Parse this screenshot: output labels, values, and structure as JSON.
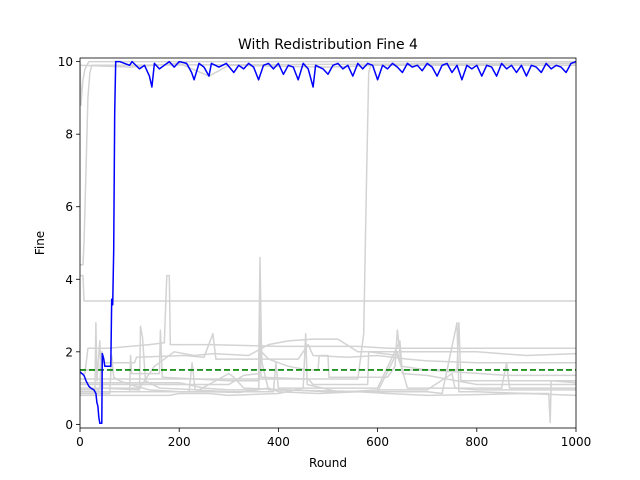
{
  "chart_data": {
    "type": "line",
    "title": "With Redistribution Fine 4",
    "xlabel": "Round",
    "ylabel": "Fine",
    "xlim": [
      0,
      1000
    ],
    "ylim": [
      -0.1,
      10.1
    ],
    "xticks": [
      0,
      200,
      400,
      600,
      800,
      1000
    ],
    "yticks": [
      0,
      2,
      4,
      6,
      8,
      10
    ],
    "grid": false,
    "legend": "none",
    "reference_line": {
      "y": 1.5,
      "color": "#008000",
      "style": "dashed"
    },
    "highlight_color": "#0000ff",
    "background_color": "#d3d3d3",
    "highlight": {
      "points": [
        [
          0,
          1.45
        ],
        [
          8,
          1.35
        ],
        [
          12,
          1.2
        ],
        [
          18,
          1.05
        ],
        [
          22,
          1.0
        ],
        [
          28,
          0.95
        ],
        [
          32,
          0.85
        ],
        [
          34,
          0.6
        ],
        [
          36,
          0.5
        ],
        [
          38,
          0.2
        ],
        [
          40,
          0.03
        ],
        [
          44,
          0.03
        ],
        [
          45,
          1.95
        ],
        [
          48,
          1.8
        ],
        [
          50,
          1.6
        ],
        [
          62,
          1.6
        ],
        [
          64,
          3.45
        ],
        [
          66,
          3.3
        ],
        [
          68,
          4.8
        ],
        [
          70,
          8.6
        ],
        [
          72,
          10.0
        ],
        [
          80,
          10.0
        ],
        [
          90,
          9.95
        ],
        [
          100,
          9.9
        ],
        [
          105,
          10.0
        ],
        [
          120,
          9.8
        ],
        [
          130,
          9.9
        ],
        [
          140,
          9.6
        ],
        [
          145,
          9.3
        ],
        [
          150,
          9.95
        ],
        [
          160,
          9.8
        ],
        [
          170,
          9.9
        ],
        [
          180,
          10.0
        ],
        [
          190,
          9.85
        ],
        [
          200,
          10.0
        ],
        [
          215,
          9.95
        ],
        [
          225,
          9.7
        ],
        [
          230,
          9.5
        ],
        [
          240,
          9.95
        ],
        [
          250,
          9.85
        ],
        [
          260,
          9.6
        ],
        [
          265,
          9.95
        ],
        [
          280,
          9.85
        ],
        [
          295,
          9.95
        ],
        [
          310,
          9.7
        ],
        [
          320,
          9.9
        ],
        [
          330,
          9.8
        ],
        [
          340,
          9.95
        ],
        [
          350,
          9.85
        ],
        [
          360,
          9.5
        ],
        [
          370,
          9.9
        ],
        [
          380,
          9.95
        ],
        [
          390,
          9.8
        ],
        [
          400,
          9.95
        ],
        [
          410,
          9.65
        ],
        [
          420,
          9.9
        ],
        [
          430,
          9.85
        ],
        [
          440,
          9.5
        ],
        [
          450,
          9.95
        ],
        [
          460,
          9.8
        ],
        [
          470,
          9.3
        ],
        [
          475,
          9.9
        ],
        [
          490,
          9.8
        ],
        [
          500,
          9.65
        ],
        [
          510,
          9.9
        ],
        [
          520,
          9.95
        ],
        [
          530,
          9.8
        ],
        [
          540,
          9.9
        ],
        [
          550,
          9.6
        ],
        [
          560,
          9.95
        ],
        [
          570,
          9.8
        ],
        [
          580,
          9.95
        ],
        [
          590,
          9.9
        ],
        [
          600,
          9.5
        ],
        [
          610,
          9.9
        ],
        [
          620,
          9.8
        ],
        [
          630,
          9.95
        ],
        [
          640,
          9.85
        ],
        [
          650,
          9.7
        ],
        [
          660,
          9.95
        ],
        [
          670,
          9.85
        ],
        [
          680,
          9.9
        ],
        [
          690,
          9.75
        ],
        [
          700,
          9.95
        ],
        [
          710,
          9.85
        ],
        [
          720,
          9.6
        ],
        [
          730,
          9.9
        ],
        [
          740,
          9.95
        ],
        [
          750,
          9.7
        ],
        [
          760,
          9.9
        ],
        [
          770,
          9.5
        ],
        [
          780,
          9.9
        ],
        [
          790,
          9.8
        ],
        [
          800,
          9.9
        ],
        [
          810,
          9.6
        ],
        [
          820,
          9.9
        ],
        [
          830,
          9.85
        ],
        [
          840,
          9.6
        ],
        [
          850,
          9.95
        ],
        [
          860,
          9.8
        ],
        [
          870,
          9.9
        ],
        [
          880,
          9.7
        ],
        [
          890,
          9.9
        ],
        [
          900,
          9.6
        ],
        [
          910,
          9.9
        ],
        [
          920,
          9.85
        ],
        [
          930,
          9.7
        ],
        [
          940,
          9.95
        ],
        [
          950,
          9.8
        ],
        [
          960,
          9.9
        ],
        [
          970,
          9.85
        ],
        [
          980,
          9.7
        ],
        [
          990,
          9.95
        ],
        [
          1000,
          10.0
        ]
      ]
    },
    "background_lines": [
      [
        [
          0,
          10.0
        ],
        [
          2,
          8.8
        ],
        [
          4,
          9.2
        ],
        [
          6,
          9.5
        ],
        [
          10,
          9.8
        ],
        [
          14,
          9.9
        ],
        [
          18,
          10.0
        ],
        [
          1000,
          10.0
        ]
      ],
      [
        [
          0,
          4.4
        ],
        [
          6,
          4.4
        ],
        [
          8,
          5.0
        ],
        [
          12,
          7.0
        ],
        [
          16,
          9.0
        ],
        [
          20,
          9.7
        ],
        [
          24,
          9.9
        ],
        [
          1000,
          9.95
        ]
      ],
      [
        [
          0,
          9.9
        ],
        [
          100,
          9.85
        ],
        [
          200,
          9.95
        ],
        [
          260,
          9.6
        ],
        [
          300,
          9.9
        ],
        [
          500,
          9.85
        ],
        [
          700,
          9.95
        ],
        [
          900,
          9.9
        ],
        [
          1000,
          9.9
        ]
      ],
      [
        [
          0,
          1.25
        ],
        [
          560,
          1.25
        ],
        [
          572,
          2.5
        ],
        [
          578,
          7.0
        ],
        [
          582,
          9.7
        ],
        [
          586,
          9.9
        ],
        [
          1000,
          9.9
        ]
      ],
      [
        [
          0,
          4.1
        ],
        [
          6,
          4.1
        ],
        [
          8,
          3.4
        ],
        [
          1000,
          3.4
        ]
      ],
      [
        [
          0,
          1.4
        ],
        [
          10,
          1.4
        ],
        [
          16,
          2.1
        ],
        [
          40,
          2.1
        ],
        [
          60,
          2.1
        ],
        [
          140,
          2.2
        ],
        [
          170,
          2.25
        ],
        [
          175,
          4.1
        ],
        [
          180,
          4.1
        ],
        [
          182,
          2.2
        ],
        [
          260,
          2.2
        ],
        [
          400,
          2.15
        ],
        [
          560,
          2.15
        ],
        [
          620,
          2.1
        ],
        [
          1000,
          2.1
        ]
      ],
      [
        [
          0,
          1.1
        ],
        [
          300,
          1.1
        ],
        [
          330,
          1.35
        ],
        [
          360,
          1.4
        ],
        [
          363,
          4.6
        ],
        [
          366,
          2.0
        ],
        [
          380,
          1.8
        ],
        [
          420,
          1.6
        ],
        [
          460,
          1.5
        ],
        [
          480,
          1.5
        ],
        [
          482,
          1.9
        ],
        [
          500,
          1.9
        ],
        [
          502,
          1.3
        ],
        [
          620,
          1.3
        ],
        [
          635,
          1.6
        ],
        [
          640,
          2.6
        ],
        [
          648,
          1.6
        ],
        [
          700,
          1.5
        ],
        [
          760,
          1.5
        ],
        [
          764,
          2.8
        ],
        [
          768,
          1.2
        ],
        [
          1000,
          1.2
        ]
      ],
      [
        [
          0,
          0.9
        ],
        [
          30,
          0.9
        ],
        [
          32,
          2.8
        ],
        [
          34,
          1.2
        ],
        [
          40,
          2.3
        ],
        [
          44,
          0.9
        ],
        [
          100,
          0.9
        ],
        [
          102,
          1.9
        ],
        [
          104,
          1.4
        ],
        [
          160,
          1.4
        ],
        [
          162,
          2.6
        ],
        [
          166,
          1.3
        ],
        [
          300,
          1.2
        ],
        [
          360,
          1.2
        ],
        [
          362,
          3.0
        ],
        [
          365,
          1.3
        ],
        [
          460,
          1.25
        ],
        [
          470,
          1.1
        ],
        [
          580,
          1.1
        ],
        [
          582,
          2.0
        ],
        [
          640,
          1.9
        ],
        [
          650,
          1.5
        ],
        [
          700,
          1.5
        ],
        [
          860,
          1.35
        ],
        [
          1000,
          1.35
        ]
      ],
      [
        [
          0,
          1.0
        ],
        [
          120,
          1.0
        ],
        [
          150,
          1.6
        ],
        [
          190,
          2.0
        ],
        [
          230,
          1.9
        ],
        [
          270,
          1.95
        ],
        [
          340,
          1.9
        ],
        [
          380,
          2.2
        ],
        [
          420,
          2.3
        ],
        [
          470,
          2.35
        ],
        [
          520,
          2.35
        ],
        [
          560,
          2.0
        ],
        [
          600,
          2.0
        ],
        [
          650,
          2.0
        ],
        [
          700,
          2.0
        ],
        [
          760,
          2.0
        ],
        [
          800,
          2.0
        ],
        [
          900,
          1.9
        ],
        [
          1000,
          1.95
        ]
      ],
      [
        [
          0,
          1.15
        ],
        [
          200,
          1.15
        ],
        [
          250,
          1.0
        ],
        [
          300,
          0.95
        ],
        [
          360,
          0.95
        ],
        [
          365,
          2.4
        ],
        [
          367,
          1.7
        ],
        [
          380,
          0.95
        ],
        [
          600,
          0.9
        ],
        [
          640,
          2.0
        ],
        [
          660,
          1.0
        ],
        [
          700,
          1.0
        ],
        [
          850,
          1.0
        ],
        [
          860,
          1.7
        ],
        [
          866,
          1.0
        ],
        [
          1000,
          1.0
        ]
      ],
      [
        [
          0,
          0.8
        ],
        [
          180,
          0.8
        ],
        [
          200,
          0.85
        ],
        [
          260,
          0.85
        ],
        [
          300,
          0.8
        ],
        [
          400,
          0.85
        ],
        [
          450,
          1.0
        ],
        [
          455,
          2.5
        ],
        [
          458,
          1.1
        ],
        [
          520,
          0.9
        ],
        [
          700,
          0.9
        ],
        [
          730,
          0.85
        ],
        [
          760,
          2.8
        ],
        [
          764,
          0.9
        ],
        [
          800,
          0.9
        ],
        [
          900,
          0.85
        ],
        [
          945,
          0.85
        ],
        [
          948,
          0.05
        ],
        [
          950,
          1.2
        ],
        [
          1000,
          1.15
        ]
      ],
      [
        [
          0,
          0.85
        ],
        [
          60,
          0.85
        ],
        [
          64,
          1.9
        ],
        [
          68,
          1.3
        ],
        [
          80,
          1.2
        ],
        [
          100,
          1.1
        ],
        [
          140,
          0.95
        ],
        [
          200,
          0.9
        ],
        [
          260,
          0.9
        ],
        [
          320,
          0.88
        ],
        [
          380,
          1.0
        ],
        [
          400,
          0.9
        ],
        [
          480,
          0.85
        ],
        [
          560,
          0.9
        ],
        [
          620,
          0.85
        ],
        [
          700,
          0.8
        ],
        [
          800,
          0.82
        ],
        [
          900,
          0.85
        ],
        [
          1000,
          0.8
        ]
      ],
      [
        [
          0,
          0.95
        ],
        [
          40,
          0.95
        ],
        [
          42,
          1.6
        ],
        [
          46,
          1.0
        ],
        [
          120,
          0.95
        ],
        [
          122,
          2.7
        ],
        [
          126,
          2.4
        ],
        [
          132,
          1.2
        ],
        [
          160,
          1.0
        ],
        [
          240,
          0.95
        ],
        [
          300,
          1.4
        ],
        [
          310,
          1.3
        ],
        [
          330,
          1.0
        ],
        [
          420,
          0.95
        ],
        [
          500,
          0.9
        ],
        [
          540,
          0.9
        ],
        [
          600,
          0.95
        ],
        [
          700,
          0.95
        ],
        [
          750,
          1.4
        ],
        [
          756,
          1.0
        ],
        [
          800,
          0.95
        ],
        [
          1000,
          0.95
        ]
      ],
      [
        [
          0,
          1.5
        ],
        [
          40,
          1.5
        ],
        [
          44,
          2.0
        ],
        [
          48,
          1.7
        ],
        [
          110,
          1.7
        ],
        [
          114,
          1.85
        ],
        [
          210,
          1.9
        ],
        [
          250,
          1.85
        ],
        [
          268,
          2.5
        ],
        [
          274,
          1.8
        ],
        [
          330,
          1.8
        ],
        [
          380,
          1.8
        ],
        [
          440,
          1.8
        ],
        [
          460,
          2.2
        ],
        [
          470,
          1.9
        ],
        [
          540,
          1.85
        ],
        [
          600,
          1.9
        ],
        [
          660,
          1.8
        ],
        [
          700,
          1.75
        ],
        [
          800,
          1.7
        ],
        [
          900,
          1.7
        ],
        [
          1000,
          1.7
        ]
      ],
      [
        [
          0,
          0.9
        ],
        [
          220,
          0.9
        ],
        [
          226,
          1.7
        ],
        [
          232,
          0.95
        ],
        [
          300,
          0.9
        ],
        [
          390,
          0.9
        ],
        [
          395,
          1.7
        ],
        [
          400,
          1.0
        ],
        [
          520,
          1.0
        ],
        [
          600,
          1.0
        ],
        [
          645,
          2.3
        ],
        [
          650,
          1.4
        ],
        [
          700,
          1.35
        ],
        [
          800,
          1.1
        ],
        [
          880,
          1.1
        ],
        [
          1000,
          1.1
        ]
      ]
    ]
  }
}
